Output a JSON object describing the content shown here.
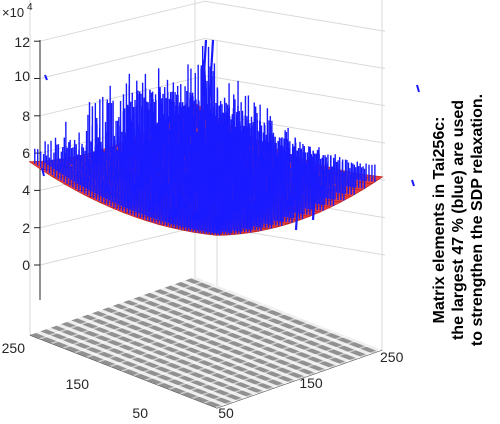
{
  "chart_data": {
    "type": "surface3d",
    "title": "",
    "side_text": [
      "Matrix elements in Tai256c:",
      "the largest 47 % (blue) are used",
      "to strengthen the SDP relaxation."
    ],
    "z_exponent_base": "×10",
    "z_exponent_power": "4",
    "z_ticks": [
      0,
      2,
      4,
      6,
      8,
      10,
      12
    ],
    "z_tick_labels": [
      "0",
      "2",
      "4",
      "6",
      "8",
      "10",
      "12"
    ],
    "zlim": [
      -2,
      12
    ],
    "x_ticks": [
      50,
      150,
      250
    ],
    "x_tick_labels": [
      "50",
      "150",
      "250"
    ],
    "y_ticks": [
      50,
      150,
      250
    ],
    "y_tick_labels": [
      "50",
      "150",
      "250"
    ],
    "xlim": [
      1,
      256
    ],
    "ylim": [
      1,
      256
    ],
    "grid": true,
    "blue_fraction_percent": 47,
    "colors": {
      "large_elements": "#1a1aff",
      "small_elements": "#e8403c",
      "projection": "#808080",
      "grid": "#d9d9d9",
      "axis": "#262626"
    }
  }
}
